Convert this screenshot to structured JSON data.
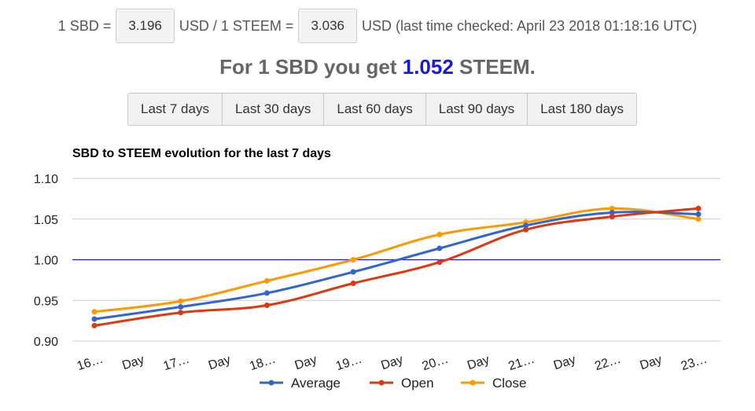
{
  "header": {
    "sbd_prefix": "1 SBD =",
    "sbd_usd": "3.196",
    "mid_text": "USD / 1 STEEM =",
    "steem_usd": "3.036",
    "suffix": "USD (last time checked: April 23 2018 01:18:16 UTC)"
  },
  "headline": {
    "prefix": "For 1 SBD you get",
    "value": "1.052",
    "suffix": "STEEM."
  },
  "range_buttons": [
    "Last 7 days",
    "Last 30 days",
    "Last 60 days",
    "Last 90 days",
    "Last 180 days"
  ],
  "chart_data": {
    "type": "line",
    "title": "SBD to STEEM evolution for the last 7 days",
    "x": [
      "16 Day",
      "17 Day",
      "18 Day",
      "19 Day",
      "20 Day",
      "21 Day",
      "22 Day",
      "23 Day"
    ],
    "x_tick_labels": [
      "16…",
      "Day",
      "17…",
      "Day",
      "18…",
      "Day",
      "19…",
      "Day",
      "20…",
      "Day",
      "21…",
      "Day",
      "22…",
      "Day",
      "23…"
    ],
    "ylim": [
      0.9,
      1.1
    ],
    "y_ticks": [
      "1.10",
      "1.05",
      "1.00",
      "0.95",
      "0.90"
    ],
    "reference_line": 1.0,
    "grid": true,
    "legend_position": "bottom",
    "colors": {
      "Average": "#3366cc",
      "Open": "#dc3912",
      "Close": "#ff9900",
      "reference": "#1a1adc",
      "grid": "#cccccc"
    },
    "series": [
      {
        "name": "Average",
        "values": [
          0.927,
          0.942,
          0.959,
          0.985,
          1.014,
          1.042,
          1.058,
          1.056
        ]
      },
      {
        "name": "Open",
        "values": [
          0.919,
          0.935,
          0.944,
          0.971,
          0.997,
          1.037,
          1.053,
          1.063
        ]
      },
      {
        "name": "Close",
        "values": [
          0.936,
          0.949,
          0.974,
          1.0,
          1.031,
          1.046,
          1.063,
          1.05
        ]
      }
    ]
  }
}
